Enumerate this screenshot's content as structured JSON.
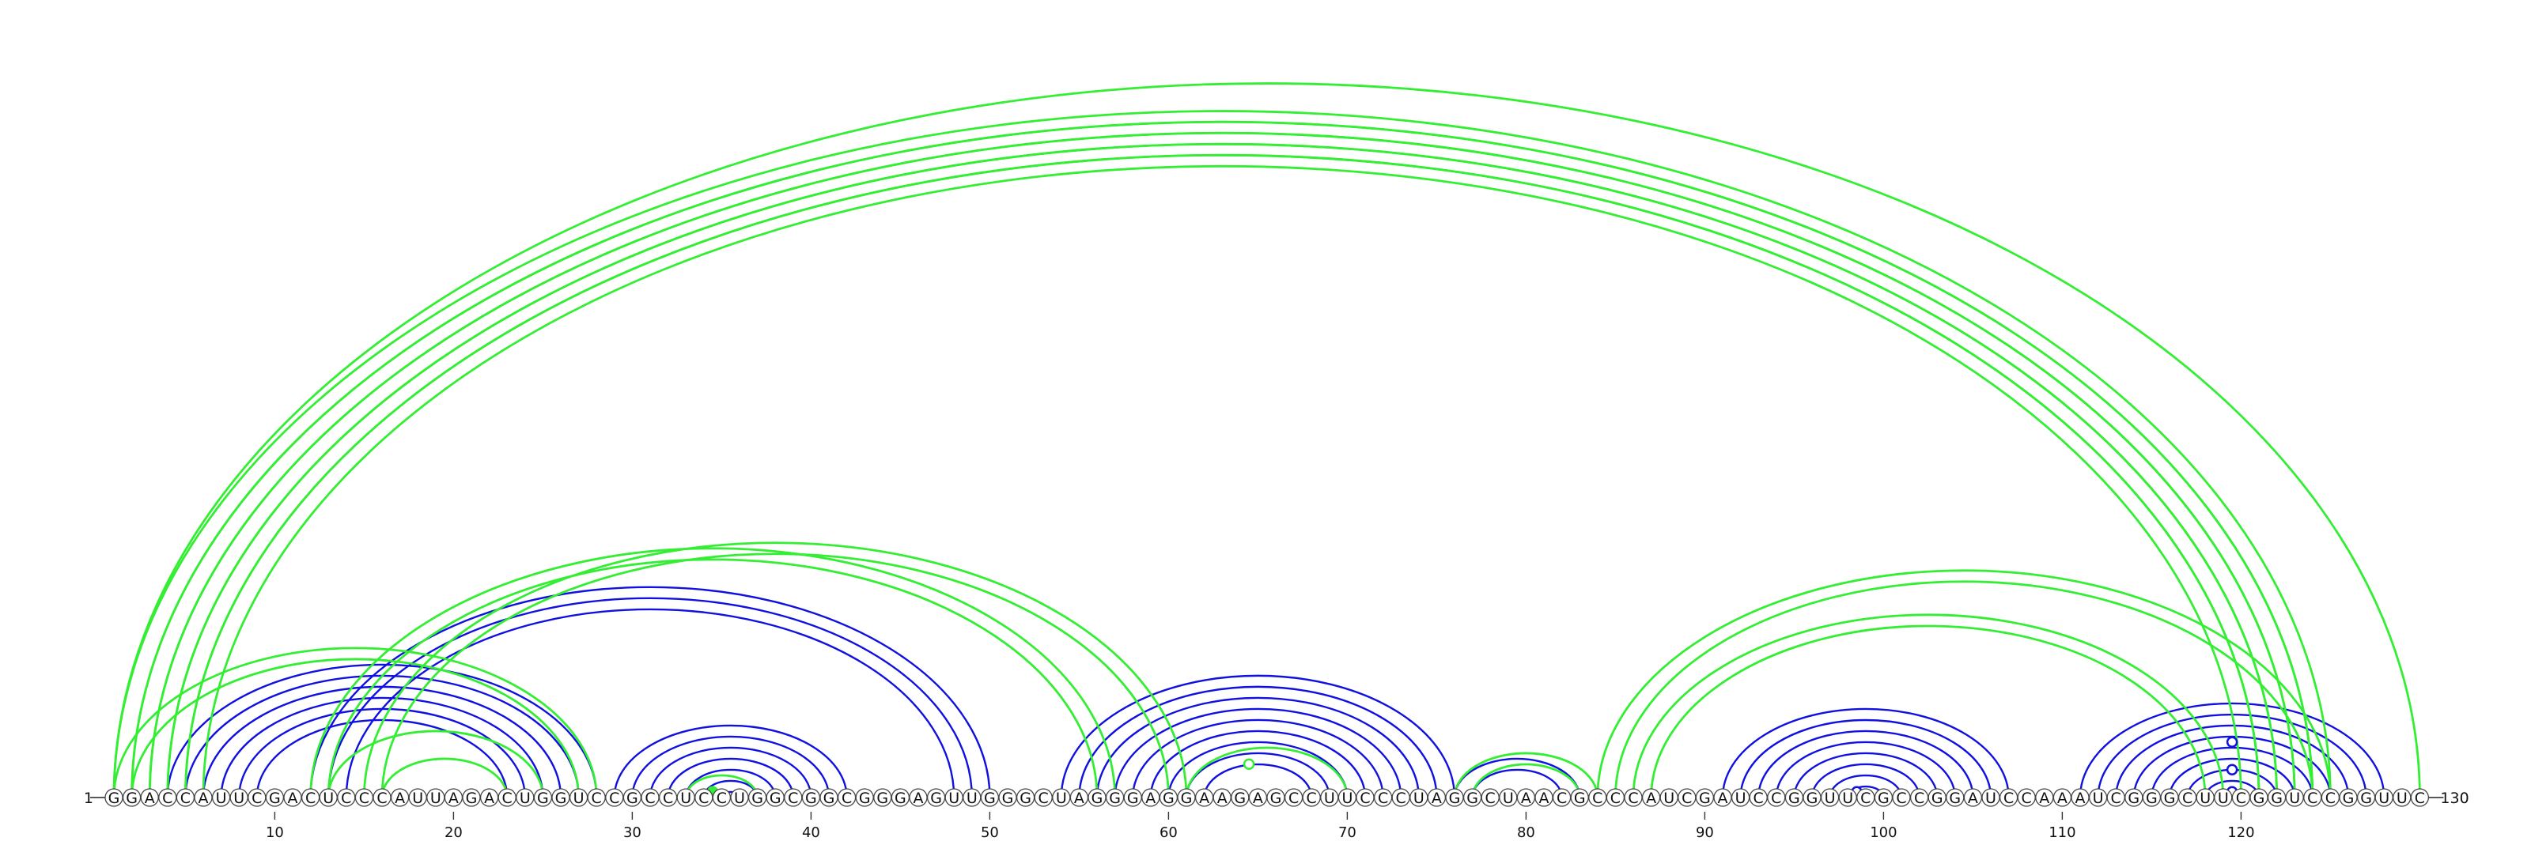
{
  "sequence": "GGACCAUUCGACUCCCAUUAGACUGGUCCGCCUCCUGGCGGCGGGAGUUGGGCUAGGGAGGAAGAGCCUUCCCUAGGCUAACGCCCAUCGAUCCGGUUCGCCGGAUCCAAAUCGGGCUUCGGUCCGGUUC",
  "start_label": "1",
  "end_label": "130",
  "ticks": [
    "10",
    "20",
    "30",
    "40",
    "50",
    "60",
    "70",
    "80",
    "90",
    "100",
    "110",
    "120"
  ],
  "tick_positions": [
    10,
    20,
    30,
    40,
    50,
    60,
    70,
    80,
    90,
    100,
    110,
    120
  ],
  "colors": {
    "blue": "#1010e0",
    "green": "#33ee33",
    "text": "#111111"
  },
  "helices": {
    "blue": [
      [
        4,
        28,
        6
      ],
      [
        12,
        50,
        3
      ],
      [
        29,
        42,
        7
      ],
      [
        54,
        76,
        9
      ],
      [
        76,
        83,
        2
      ],
      [
        91,
        107,
        8
      ],
      [
        111,
        128,
        9
      ]
    ],
    "green": [
      [
        1,
        130,
        1
      ],
      [
        1,
        125,
        2
      ],
      [
        2,
        124,
        2
      ],
      [
        3,
        123,
        2
      ],
      [
        4,
        122,
        2
      ],
      [
        5,
        121,
        2
      ],
      [
        1,
        28,
        2
      ],
      [
        12,
        57,
        2
      ],
      [
        15,
        61,
        2
      ],
      [
        13,
        25,
        1
      ],
      [
        16,
        23,
        1
      ],
      [
        33,
        37,
        1
      ],
      [
        61,
        70,
        1
      ],
      [
        76,
        84,
        2
      ],
      [
        84,
        125,
        2
      ],
      [
        86,
        119,
        2
      ]
    ]
  },
  "markers": [
    {
      "pos": 34.5,
      "color": "green",
      "filled": true,
      "height": 0.5
    },
    {
      "pos": 64.5,
      "color": "green",
      "filled": false,
      "height": 3.0
    },
    {
      "pos": 98.5,
      "color": "blue",
      "filled": false,
      "height": 0.5
    },
    {
      "pos": 119.5,
      "color": "blue",
      "filled": false,
      "height": 0.5
    },
    {
      "pos": 119.5,
      "color": "blue",
      "filled": false,
      "height": 2.5
    },
    {
      "pos": 119.5,
      "color": "blue",
      "filled": false,
      "height": 5.0
    }
  ]
}
